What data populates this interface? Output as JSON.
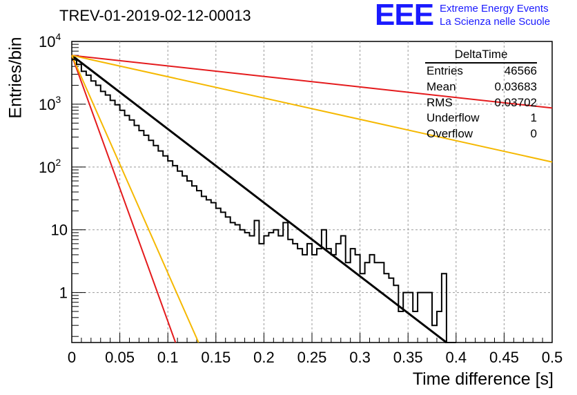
{
  "header": {
    "title": "TREV-01-2019-02-12-00013",
    "logo_text": "EEE",
    "logo_line1": "Extreme Energy Events",
    "logo_line2": "La Scienza nelle Scuole"
  },
  "stats_box": {
    "title": "DeltaTime",
    "rows": [
      {
        "label": "Entries",
        "value": "46566"
      },
      {
        "label": "Mean",
        "value": "0.03683"
      },
      {
        "label": "RMS",
        "value": "0.03702"
      },
      {
        "label": "Underflow",
        "value": "1"
      },
      {
        "label": "Overflow",
        "value": "0"
      }
    ]
  },
  "chart_data": {
    "type": "line",
    "title": "TREV-01-2019-02-12-00013",
    "xlabel": "Time difference [s]",
    "ylabel": "Entries/bin",
    "xlim": [
      0,
      0.5
    ],
    "ylim": [
      0.16,
      10000
    ],
    "yscale": "log",
    "grid": true,
    "x_ticks": [
      "0",
      "0.05",
      "0.1",
      "0.15",
      "0.2",
      "0.25",
      "0.3",
      "0.35",
      "0.4",
      "0.45",
      "0.5"
    ],
    "y_ticks": [
      {
        "value": 1,
        "label": "1"
      },
      {
        "value": 10,
        "label": "10"
      },
      {
        "value": 100,
        "label": "10^2"
      },
      {
        "value": 1000,
        "label": "10^3"
      },
      {
        "value": 10000,
        "label": "10^4"
      }
    ],
    "colors": {
      "histogram": "#000000",
      "fit": "#000000",
      "red": "#e41a1c",
      "yellow": "#f5b800"
    },
    "histogram": {
      "name": "DeltaTime",
      "bin_width": 0.005,
      "values": [
        5200,
        4300,
        3350,
        2900,
        2350,
        2000,
        1600,
        1400,
        1150,
        980,
        800,
        660,
        560,
        460,
        380,
        320,
        265,
        220,
        180,
        150,
        125,
        105,
        86,
        72,
        60,
        50,
        42,
        34,
        30,
        27,
        22,
        19,
        16,
        13,
        12,
        10,
        9,
        8,
        14,
        6,
        8,
        9,
        10,
        8,
        13,
        7,
        6,
        5,
        4,
        6,
        4,
        5,
        10,
        5,
        4,
        6,
        8,
        3,
        5,
        4,
        2,
        3,
        4,
        3,
        3,
        2,
        1.7,
        1.3,
        0.5,
        1,
        1,
        0.5,
        1,
        1,
        1,
        0.3,
        0.5,
        2,
        0,
        0
      ]
    },
    "lines": [
      {
        "color": "#000000",
        "points": [
          [
            0,
            6000
          ],
          [
            0.39,
            0.16
          ]
        ]
      },
      {
        "color": "#e41a1c",
        "points": [
          [
            0,
            6000
          ],
          [
            0.5,
            870
          ]
        ]
      },
      {
        "color": "#f5b800",
        "points": [
          [
            0,
            6000
          ],
          [
            0.5,
            120
          ]
        ]
      },
      {
        "color": "#e41a1c",
        "points": [
          [
            0,
            6000
          ],
          [
            0.108,
            0.16
          ]
        ]
      },
      {
        "color": "#f5b800",
        "points": [
          [
            0,
            6000
          ],
          [
            0.132,
            0.16
          ]
        ]
      }
    ]
  }
}
